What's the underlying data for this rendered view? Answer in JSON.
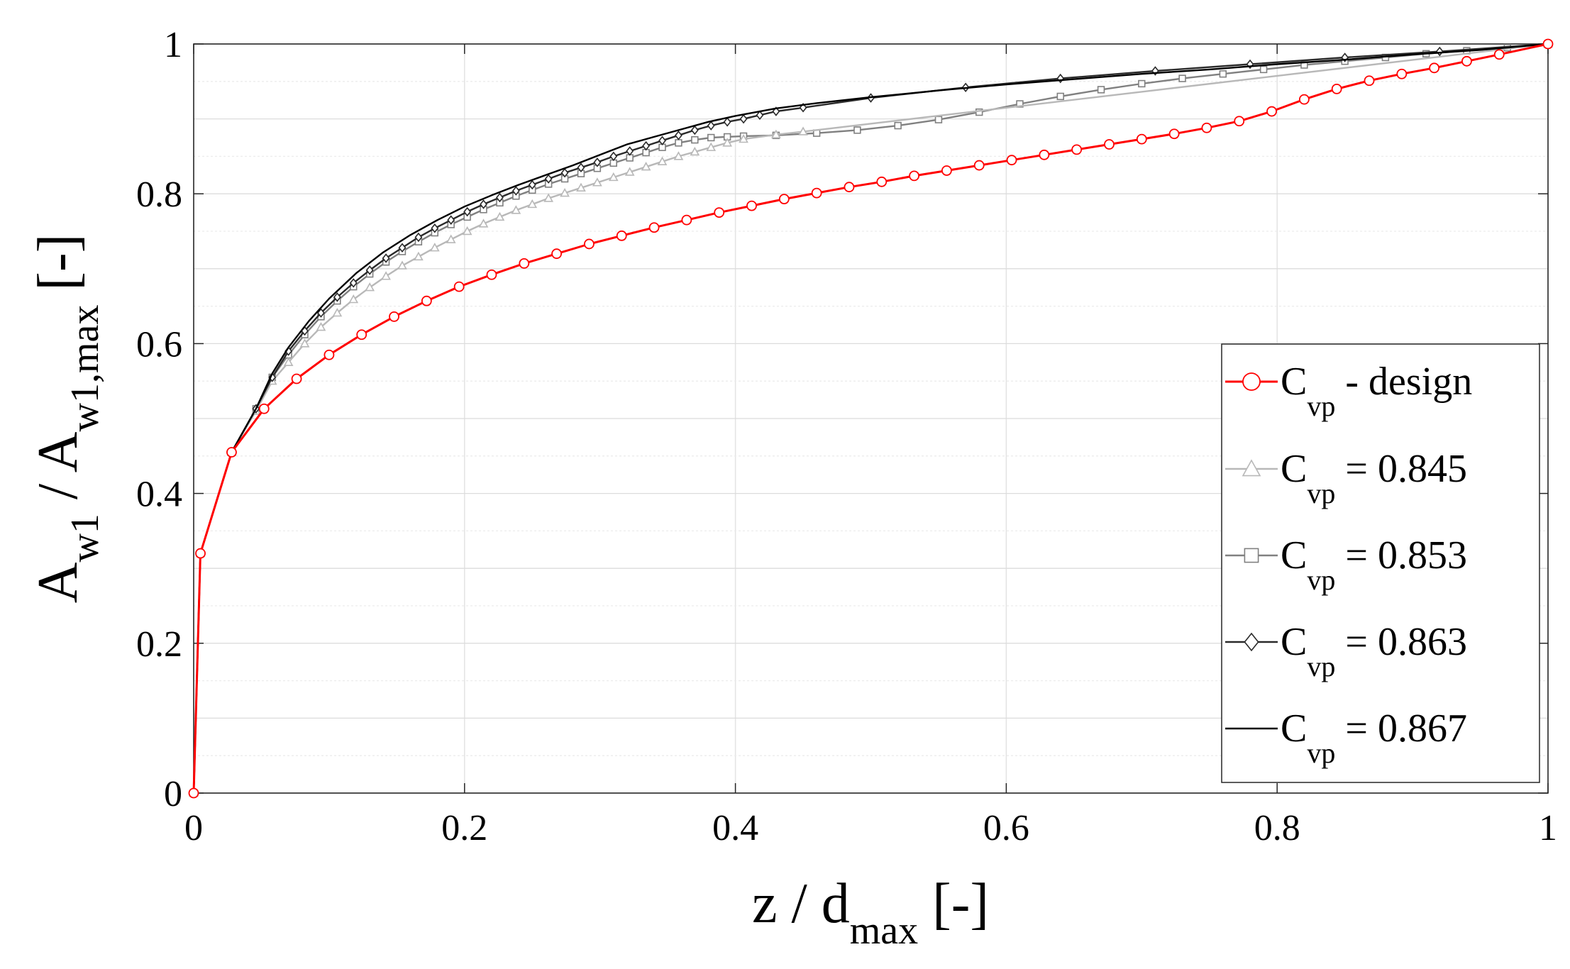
{
  "chart_data": {
    "type": "line",
    "title": "",
    "xlabel": {
      "main": "z / d",
      "sub": "max",
      "suffix": " [-]"
    },
    "ylabel": {
      "p1": "A",
      "s1": "w1",
      "p2": " / A",
      "s2": "w1,max",
      "p3": " [-]"
    },
    "xlim": [
      0,
      1
    ],
    "ylim": [
      0,
      1
    ],
    "x_ticks": [
      0,
      0.2,
      0.4,
      0.6,
      0.8,
      1
    ],
    "y_ticks": [
      0,
      0.2,
      0.4,
      0.6,
      0.8,
      1
    ],
    "x_tick_labels": [
      "0",
      "0.2",
      "0.4",
      "0.6",
      "0.8",
      "1"
    ],
    "y_tick_labels": [
      "0",
      "0.2",
      "0.4",
      "0.6",
      "0.8",
      "1"
    ],
    "grid": true,
    "legend_position": "bottom-right",
    "series": [
      {
        "name": "C_vp - design",
        "legend": {
          "base": "C",
          "sub": "vp",
          "suffix": " - design"
        },
        "color": "#ff0000",
        "marker": "circle",
        "x": [
          0,
          0.005,
          0.028,
          0.052,
          0.076,
          0.1,
          0.124,
          0.148,
          0.172,
          0.196,
          0.22,
          0.244,
          0.268,
          0.292,
          0.316,
          0.34,
          0.364,
          0.388,
          0.412,
          0.436,
          0.46,
          0.484,
          0.508,
          0.532,
          0.556,
          0.58,
          0.604,
          0.628,
          0.652,
          0.676,
          0.7,
          0.724,
          0.748,
          0.772,
          0.796,
          0.82,
          0.844,
          0.868,
          0.892,
          0.916,
          0.94,
          0.964,
          1
        ],
        "y": [
          0,
          0.32,
          0.455,
          0.513,
          0.553,
          0.585,
          0.612,
          0.636,
          0.657,
          0.676,
          0.692,
          0.707,
          0.72,
          0.733,
          0.744,
          0.755,
          0.765,
          0.775,
          0.784,
          0.793,
          0.801,
          0.809,
          0.816,
          0.824,
          0.831,
          0.838,
          0.845,
          0.852,
          0.859,
          0.866,
          0.873,
          0.88,
          0.888,
          0.897,
          0.91,
          0.926,
          0.94,
          0.951,
          0.96,
          0.968,
          0.977,
          0.986,
          1
        ]
      },
      {
        "name": "C_vp = 0.845",
        "legend": {
          "base": "C",
          "sub": "vp",
          "suffix": " = 0.845"
        },
        "color": "#b8b8b8",
        "marker": "triangle",
        "x": [
          0,
          0.005,
          0.028,
          0.046,
          0.058,
          0.07,
          0.082,
          0.094,
          0.106,
          0.118,
          0.13,
          0.142,
          0.154,
          0.166,
          0.178,
          0.19,
          0.202,
          0.214,
          0.226,
          0.238,
          0.25,
          0.262,
          0.274,
          0.286,
          0.298,
          0.31,
          0.322,
          0.334,
          0.346,
          0.358,
          0.37,
          0.382,
          0.394,
          0.406,
          0.43,
          0.45,
          1
        ],
        "y": [
          0,
          0.32,
          0.455,
          0.51,
          0.55,
          0.575,
          0.6,
          0.622,
          0.641,
          0.659,
          0.675,
          0.69,
          0.704,
          0.716,
          0.728,
          0.739,
          0.75,
          0.76,
          0.769,
          0.778,
          0.786,
          0.794,
          0.801,
          0.808,
          0.815,
          0.822,
          0.829,
          0.836,
          0.843,
          0.85,
          0.856,
          0.862,
          0.868,
          0.873,
          0.879,
          0.883,
          1
        ]
      },
      {
        "name": "C_vp = 0.853",
        "legend": {
          "base": "C",
          "sub": "vp",
          "suffix": " = 0.853"
        },
        "color": "#808080",
        "marker": "square",
        "x": [
          0,
          0.005,
          0.028,
          0.046,
          0.058,
          0.07,
          0.082,
          0.094,
          0.106,
          0.118,
          0.13,
          0.142,
          0.154,
          0.166,
          0.178,
          0.19,
          0.202,
          0.214,
          0.226,
          0.238,
          0.25,
          0.262,
          0.274,
          0.286,
          0.298,
          0.31,
          0.322,
          0.334,
          0.346,
          0.358,
          0.37,
          0.382,
          0.394,
          0.406,
          0.43,
          0.46,
          0.49,
          0.52,
          0.55,
          0.58,
          0.61,
          0.64,
          0.67,
          0.7,
          0.73,
          0.76,
          0.79,
          0.82,
          0.85,
          0.88,
          0.91,
          0.94,
          0.97,
          1
        ],
        "y": [
          0,
          0.32,
          0.455,
          0.513,
          0.555,
          0.585,
          0.612,
          0.636,
          0.657,
          0.676,
          0.693,
          0.709,
          0.723,
          0.736,
          0.748,
          0.759,
          0.769,
          0.779,
          0.788,
          0.797,
          0.805,
          0.813,
          0.82,
          0.827,
          0.834,
          0.841,
          0.848,
          0.855,
          0.862,
          0.868,
          0.872,
          0.875,
          0.876,
          0.877,
          0.878,
          0.881,
          0.885,
          0.891,
          0.899,
          0.909,
          0.92,
          0.93,
          0.939,
          0.947,
          0.954,
          0.96,
          0.966,
          0.972,
          0.977,
          0.982,
          0.987,
          0.991,
          0.995,
          1
        ]
      },
      {
        "name": "C_vp = 0.863",
        "legend": {
          "base": "C",
          "sub": "vp",
          "suffix": " = 0.863"
        },
        "color": "#2a2a2a",
        "marker": "diamond",
        "x": [
          0,
          0.005,
          0.028,
          0.046,
          0.058,
          0.07,
          0.082,
          0.094,
          0.106,
          0.118,
          0.13,
          0.142,
          0.154,
          0.166,
          0.178,
          0.19,
          0.202,
          0.214,
          0.226,
          0.238,
          0.25,
          0.262,
          0.274,
          0.286,
          0.298,
          0.31,
          0.322,
          0.334,
          0.346,
          0.358,
          0.37,
          0.382,
          0.394,
          0.406,
          0.418,
          0.43,
          0.45,
          0.5,
          0.57,
          0.64,
          0.71,
          0.78,
          0.85,
          0.92,
          1
        ],
        "y": [
          0,
          0.32,
          0.455,
          0.513,
          0.555,
          0.59,
          0.617,
          0.641,
          0.662,
          0.681,
          0.698,
          0.714,
          0.728,
          0.742,
          0.754,
          0.765,
          0.776,
          0.786,
          0.795,
          0.804,
          0.812,
          0.82,
          0.828,
          0.835,
          0.842,
          0.85,
          0.857,
          0.864,
          0.871,
          0.878,
          0.885,
          0.891,
          0.896,
          0.9,
          0.905,
          0.91,
          0.915,
          0.928,
          0.942,
          0.954,
          0.964,
          0.973,
          0.982,
          0.99,
          1
        ]
      },
      {
        "name": "C_vp = 0.867",
        "legend": {
          "base": "C",
          "sub": "vp",
          "suffix": " = 0.867"
        },
        "color": "#000000",
        "marker": "none",
        "x": [
          0,
          0.005,
          0.028,
          0.046,
          0.058,
          0.07,
          0.085,
          0.1,
          0.12,
          0.14,
          0.16,
          0.18,
          0.2,
          0.22,
          0.24,
          0.26,
          0.28,
          0.3,
          0.32,
          0.34,
          0.36,
          0.38,
          0.4,
          0.43,
          0.46,
          0.5,
          0.55,
          0.6,
          0.65,
          0.7,
          0.75,
          0.8,
          0.85,
          0.9,
          0.95,
          1
        ],
        "y": [
          0,
          0.32,
          0.455,
          0.513,
          0.56,
          0.595,
          0.63,
          0.66,
          0.694,
          0.722,
          0.745,
          0.765,
          0.783,
          0.798,
          0.812,
          0.825,
          0.838,
          0.852,
          0.866,
          0.876,
          0.886,
          0.896,
          0.904,
          0.914,
          0.921,
          0.929,
          0.938,
          0.946,
          0.953,
          0.96,
          0.966,
          0.973,
          0.979,
          0.986,
          0.992,
          1
        ]
      }
    ]
  }
}
